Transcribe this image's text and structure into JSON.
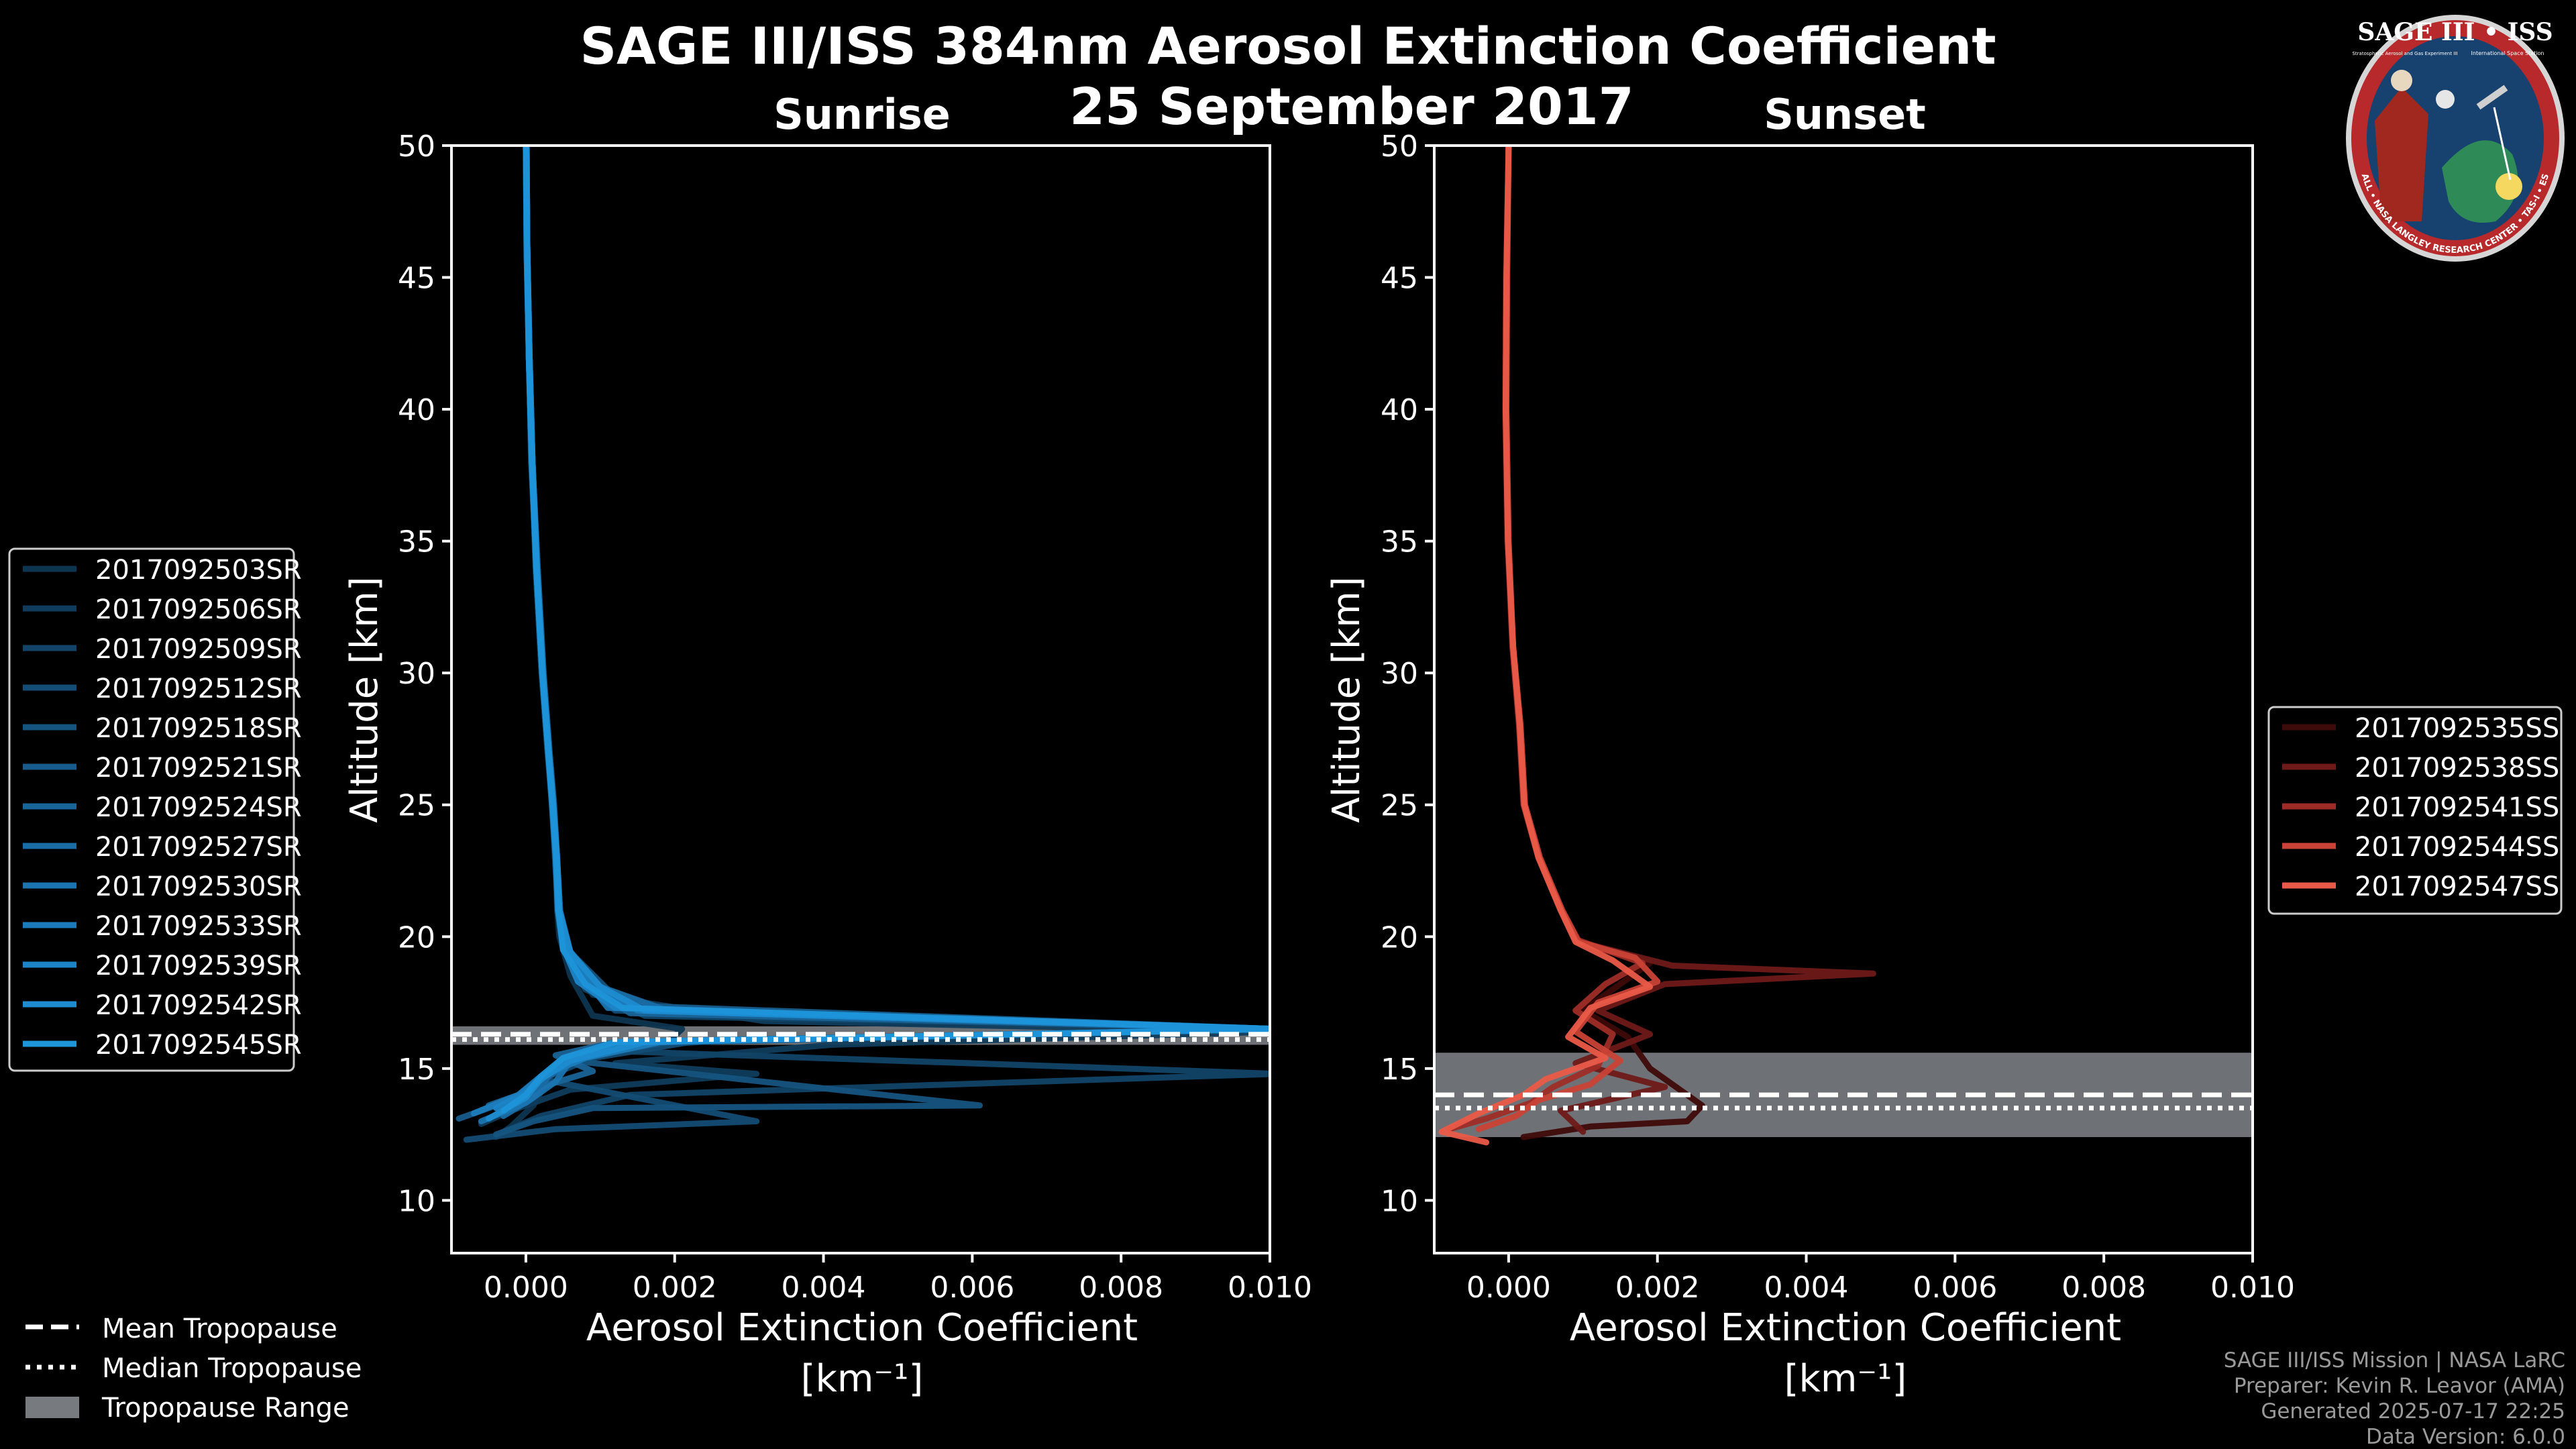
{
  "figure": {
    "title_line1": "SAGE III/ISS 384nm Aerosol Extinction Coefficient",
    "title_line2": "25 September 2017",
    "footer": {
      "line1": "SAGE III/ISS Mission | NASA LaRC",
      "line2": "Preparer: Kevin R. Leavor (AMA)",
      "line3": "Generated 2025-07-17 22:25",
      "line4": "Data Version: 6.0.0"
    },
    "logo": {
      "top": "SAGE III • ISS",
      "sub_left": "Stratospheric Aerosol and Gas Experiment III",
      "sub_right": "International Space Station",
      "ring": "BALL • NASA LANGLEY RESEARCH CENTER • TAS-I • ESA"
    },
    "tropopause_legend": [
      {
        "label": "Mean Tropopause",
        "style": "dashed"
      },
      {
        "label": "Median Tropopause",
        "style": "dotted"
      },
      {
        "label": "Tropopause Range",
        "style": "band"
      }
    ],
    "colors": {
      "sunrise_base": "#1a8ad0",
      "sunset_base": "#e05a4a",
      "band": "#777b80"
    }
  },
  "chart_data": [
    {
      "type": "line",
      "panel": "sunrise",
      "title": "Sunrise",
      "xlabel": "Aerosol Extinction Coefficient",
      "xunits": "[km⁻¹]",
      "ylabel": "Altitude [km]",
      "xlim": [
        -0.001,
        0.01
      ],
      "ylim": [
        8,
        50
      ],
      "xticks": [
        0.0,
        0.002,
        0.004,
        0.006,
        0.008,
        0.01
      ],
      "xtick_labels": [
        "0.000",
        "0.002",
        "0.004",
        "0.006",
        "0.008",
        "0.010"
      ],
      "yticks": [
        10,
        15,
        20,
        25,
        30,
        35,
        40,
        45,
        50
      ],
      "tropopause": {
        "mean": 16.3,
        "median": 16.1,
        "range": [
          15.9,
          16.6
        ]
      },
      "series": [
        {
          "name": "2017092503SR",
          "color": "#0d3550",
          "x": [
            1e-05,
            2e-05,
            4e-05,
            8e-05,
            0.00014,
            0.00022,
            0.0003,
            0.00036,
            0.0004,
            0.00042,
            0.00045,
            0.0006,
            0.0009,
            0.0021,
            0.0019,
            0.0006,
            0.0003,
            0.0001,
            -0.0002,
            -0.0004
          ],
          "y": [
            50,
            46,
            42,
            38,
            34,
            30,
            27,
            25,
            23,
            21,
            20,
            18.5,
            17,
            16.5,
            16,
            15.4,
            14.6,
            13.6,
            12.8,
            12.4
          ]
        },
        {
          "name": "2017092506SR",
          "color": "#0f3c5c",
          "x": [
            0.0,
            2e-05,
            5e-05,
            9e-05,
            0.00015,
            0.00023,
            0.00031,
            0.00037,
            0.00041,
            0.00044,
            0.00052,
            0.0009,
            0.0032,
            0.0101,
            0.0041,
            0.0012,
            0.0031,
            0.0006,
            -0.0002,
            -0.0006
          ],
          "y": [
            50,
            46,
            42,
            38,
            34,
            30,
            27,
            25,
            23,
            21,
            19.5,
            17.8,
            16.8,
            16.4,
            15.9,
            15.2,
            14.8,
            14.2,
            13.4,
            12.9
          ]
        },
        {
          "name": "2017092509SR",
          "color": "#114468",
          "x": [
            0.0,
            1e-05,
            4e-05,
            8e-05,
            0.00013,
            0.00021,
            0.00029,
            0.00035,
            0.00039,
            0.00043,
            0.0005,
            0.0008,
            0.0016,
            0.0101,
            0.0028,
            0.0008,
            0.0101,
            0.0014,
            0.0002,
            -0.0003
          ],
          "y": [
            50,
            46,
            42,
            38,
            34,
            30,
            27,
            25,
            23,
            21,
            19.5,
            18,
            17,
            16.5,
            16.1,
            15.7,
            14.8,
            14.0,
            13.2,
            12.6
          ]
        },
        {
          "name": "2017092512SR",
          "color": "#134c74",
          "x": [
            1e-05,
            2e-05,
            4e-05,
            7e-05,
            0.00014,
            0.00022,
            0.0003,
            0.00036,
            0.00041,
            0.00045,
            0.00055,
            0.0008,
            0.0012,
            0.0101,
            0.0022,
            0.0009,
            0.0002,
            0.0031,
            0.0004,
            -0.0008
          ],
          "y": [
            50,
            46,
            42,
            38,
            34,
            30,
            27,
            25,
            23,
            21,
            19.5,
            18.2,
            17.2,
            16.5,
            16,
            15.4,
            14.6,
            13.0,
            12.7,
            12.3
          ]
        },
        {
          "name": "2017092518SR",
          "color": "#155480",
          "x": [
            0.0,
            2e-05,
            5e-05,
            9e-05,
            0.00016,
            0.00024,
            0.00032,
            0.00038,
            0.00042,
            0.00046,
            0.0006,
            0.0011,
            0.0017,
            0.0101,
            0.0019,
            0.0006,
            0.0061,
            0.0009,
            0.0001,
            -0.0004
          ],
          "y": [
            50,
            46,
            42,
            38,
            34,
            30,
            27,
            25,
            23,
            21,
            19.4,
            18,
            17.3,
            16.5,
            16,
            15.3,
            13.6,
            13.5,
            13.0,
            12.5
          ]
        },
        {
          "name": "2017092521SR",
          "color": "#175c8c",
          "x": [
            1e-05,
            2e-05,
            4e-05,
            8e-05,
            0.00015,
            0.00023,
            0.00031,
            0.00037,
            0.00041,
            0.00044,
            0.0005,
            0.0007,
            0.0013,
            0.0101,
            0.0015,
            0.0005,
            0.0002,
            -0.0002,
            -0.0009
          ],
          "y": [
            50,
            46,
            42,
            38,
            34,
            30,
            27,
            25,
            23,
            21,
            19.6,
            18.3,
            17.4,
            16.5,
            16,
            15.4,
            14.6,
            13.8,
            13.1
          ]
        },
        {
          "name": "2017092524SR",
          "color": "#196498",
          "x": [
            0.0,
            1e-05,
            4e-05,
            8e-05,
            0.00014,
            0.00022,
            0.0003,
            0.00036,
            0.0004,
            0.00043,
            0.0005,
            0.0009,
            0.0014,
            0.0101,
            0.0012,
            0.0004,
            0.0009,
            0.0002,
            -0.0005
          ],
          "y": [
            50,
            46,
            42,
            38,
            34,
            30,
            27,
            25,
            23,
            21,
            19.5,
            18,
            17.1,
            16.5,
            16,
            15.5,
            14.9,
            14.3,
            13.6
          ]
        },
        {
          "name": "2017092527SR",
          "color": "#1a6ca4",
          "x": [
            1e-05,
            2e-05,
            5e-05,
            9e-05,
            0.00015,
            0.00023,
            0.00031,
            0.00037,
            0.00042,
            0.00046,
            0.00058,
            0.001,
            0.0019,
            0.0101,
            0.0017,
            0.0007,
            0.0003,
            0.0001,
            -0.0003
          ],
          "y": [
            50,
            46,
            42,
            38,
            34,
            30,
            27,
            25,
            23,
            21,
            19.5,
            18.1,
            17.2,
            16.5,
            16,
            15.4,
            14.7,
            13.9,
            13.2
          ]
        },
        {
          "name": "2017092530SR",
          "color": "#1b74b0",
          "x": [
            0.0,
            2e-05,
            4e-05,
            8e-05,
            0.00014,
            0.00022,
            0.0003,
            0.00035,
            0.0004,
            0.00044,
            0.0005,
            0.0008,
            0.0011,
            0.0101,
            0.0013,
            0.0006,
            0.0004,
            0.0,
            -0.0006
          ],
          "y": [
            50,
            46,
            42,
            38,
            34,
            30,
            27,
            25,
            23,
            21,
            19.6,
            18.4,
            17.3,
            16.5,
            16,
            15.3,
            14.5,
            13.7,
            13.0
          ]
        },
        {
          "name": "2017092533SR",
          "color": "#1c7cbb",
          "x": [
            1e-05,
            2e-05,
            4e-05,
            8e-05,
            0.00015,
            0.00023,
            0.00031,
            0.00037,
            0.00041,
            0.00045,
            0.00055,
            0.0009,
            0.0015,
            0.0101,
            0.0018,
            0.0008,
            0.0002,
            -0.0001,
            -0.0007
          ],
          "y": [
            50,
            46,
            42,
            38,
            34,
            30,
            27,
            25,
            23,
            21,
            19.5,
            18.2,
            17.2,
            16.5,
            16,
            15.4,
            14.7,
            14.0,
            13.3
          ]
        },
        {
          "name": "2017092539SR",
          "color": "#1c84c6",
          "x": [
            0.0,
            1e-05,
            4e-05,
            8e-05,
            0.00014,
            0.00022,
            0.0003,
            0.00036,
            0.0004,
            0.00043,
            0.0005,
            0.0007,
            0.0012,
            0.0101,
            0.0014,
            0.0005,
            0.0003,
            0.0,
            -0.0004
          ],
          "y": [
            50,
            46,
            42,
            38,
            34,
            30,
            27,
            25,
            23,
            21,
            19.6,
            18.3,
            17.3,
            16.5,
            16,
            15.4,
            14.8,
            14.1,
            13.5
          ]
        },
        {
          "name": "2017092542SR",
          "color": "#1d8cd0",
          "x": [
            1e-05,
            2e-05,
            5e-05,
            9e-05,
            0.00015,
            0.00023,
            0.00031,
            0.00037,
            0.00042,
            0.00045,
            0.0006,
            0.001,
            0.0016,
            0.0101,
            0.0016,
            0.0006,
            0.0002,
            0.0,
            -0.0005
          ],
          "y": [
            50,
            46,
            42,
            38,
            34,
            30,
            27,
            25,
            23,
            21,
            19.4,
            18.1,
            17.2,
            16.5,
            16,
            15.3,
            14.6,
            13.9,
            13.1
          ]
        },
        {
          "name": "2017092545SR",
          "color": "#1e94d9",
          "x": [
            0.0,
            2e-05,
            4e-05,
            8e-05,
            0.00014,
            0.00022,
            0.0003,
            0.00036,
            0.00041,
            0.00044,
            0.0005,
            0.0008,
            0.0013,
            0.0101,
            0.0012,
            0.0005,
            0.0002,
            0.0,
            -0.0003
          ],
          "y": [
            50,
            46,
            42,
            38,
            34,
            30,
            27,
            25,
            23,
            21,
            19.5,
            18.2,
            17.3,
            16.5,
            16,
            15.4,
            14.7,
            14.0,
            13.4
          ]
        }
      ]
    },
    {
      "type": "line",
      "panel": "sunset",
      "title": "Sunset",
      "xlabel": "Aerosol Extinction Coefficient",
      "xunits": "[km⁻¹]",
      "ylabel": "Altitude [km]",
      "xlim": [
        -0.001,
        0.01
      ],
      "ylim": [
        8,
        50
      ],
      "xticks": [
        0.0,
        0.002,
        0.004,
        0.006,
        0.008,
        0.01
      ],
      "xtick_labels": [
        "0.000",
        "0.002",
        "0.004",
        "0.006",
        "0.008",
        "0.010"
      ],
      "yticks": [
        10,
        15,
        20,
        25,
        30,
        35,
        40,
        45,
        50
      ],
      "tropopause": {
        "mean": 14.0,
        "median": 13.5,
        "range": [
          12.4,
          15.6
        ]
      },
      "series": [
        {
          "name": "2017092535SS",
          "color": "#3f0a0a",
          "x": [
            0.0,
            -4e-05,
            -5e-05,
            -2e-05,
            5e-05,
            0.00015,
            0.0002,
            0.0004,
            0.0007,
            0.0009,
            0.0019,
            0.0015,
            0.001,
            0.0016,
            0.0019,
            0.0023,
            0.0026,
            0.0024,
            0.0011,
            0.0002
          ],
          "y": [
            50,
            45,
            40,
            35,
            31,
            28,
            25,
            23,
            21,
            19.8,
            19,
            18.2,
            17.2,
            16.2,
            15,
            14.2,
            13.6,
            13,
            12.8,
            12.4
          ]
        },
        {
          "name": "2017092538SS",
          "color": "#6e1a18",
          "x": [
            0.0,
            -3e-05,
            -4e-05,
            -1e-05,
            6e-05,
            0.00016,
            0.00022,
            0.00042,
            0.00072,
            0.00095,
            0.0022,
            0.0049,
            0.0021,
            0.0012,
            0.0019,
            0.0009,
            0.0021,
            0.0007,
            0.001
          ],
          "y": [
            50,
            45,
            40,
            35,
            31,
            28,
            25,
            23,
            21,
            19.8,
            18.9,
            18.6,
            18.2,
            17.2,
            16.3,
            15.2,
            14.3,
            13.4,
            12.6
          ]
        },
        {
          "name": "2017092541SS",
          "color": "#9e2c26",
          "x": [
            0.0,
            -3e-05,
            -4e-05,
            -1e-05,
            5e-05,
            0.00014,
            0.0002,
            0.0004,
            0.0007,
            0.0009,
            0.0018,
            0.0013,
            0.0009,
            0.0014,
            0.0012,
            0.0006,
            0.0003,
            -0.0003,
            -0.0008
          ],
          "y": [
            50,
            45,
            40,
            35,
            31,
            28,
            25,
            23,
            21,
            19.9,
            19,
            18.2,
            17.2,
            16.3,
            15.1,
            14.3,
            13.7,
            13.1,
            12.7
          ]
        },
        {
          "name": "2017092544SS",
          "color": "#c94236",
          "x": [
            0.0,
            -2e-05,
            -3e-05,
            0.0,
            6e-05,
            0.00016,
            0.00022,
            0.00042,
            0.00072,
            0.00094,
            0.0017,
            0.002,
            0.0012,
            0.0009,
            0.0015,
            0.0011,
            0.0004,
            0.0001,
            -0.0004
          ],
          "y": [
            50,
            45,
            40,
            35,
            31,
            28,
            25,
            23,
            21,
            19.8,
            19.2,
            18.3,
            17.5,
            16.4,
            15.3,
            14.4,
            13.8,
            13.2,
            12.7
          ]
        },
        {
          "name": "2017092547SS",
          "color": "#ea5a48",
          "x": [
            0.0,
            -3e-05,
            -4e-05,
            -1e-05,
            6e-05,
            0.00015,
            0.00021,
            0.0004,
            0.0007,
            0.0009,
            0.0014,
            0.0019,
            0.0011,
            0.0008,
            0.0013,
            0.0005,
            0.0002,
            -0.0004,
            -0.0009,
            -0.0003
          ],
          "y": [
            50,
            45,
            40,
            35,
            31,
            28,
            25,
            23,
            21,
            19.8,
            19.1,
            18.1,
            17.3,
            16.2,
            15.4,
            14.6,
            14.0,
            13.3,
            12.6,
            12.2
          ]
        }
      ]
    }
  ]
}
